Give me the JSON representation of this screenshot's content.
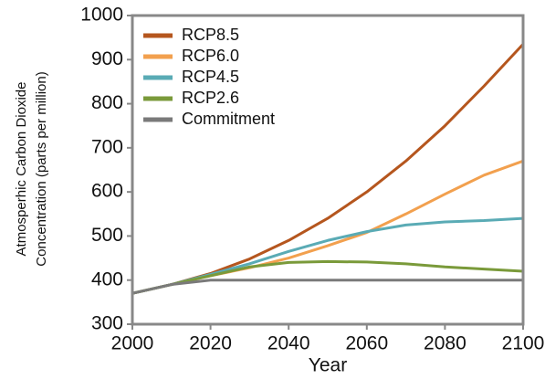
{
  "chart_data": {
    "type": "line",
    "xlabel": "Year",
    "ylabel": [
      "Atmosperhic Carbon Dioxide",
      "Concentration (parts per million)"
    ],
    "x": [
      2000,
      2010,
      2020,
      2030,
      2040,
      2050,
      2060,
      2070,
      2080,
      2090,
      2100
    ],
    "series": [
      {
        "name": "RCP8.5",
        "color": "#b5561e",
        "values": [
          370,
          390,
          415,
          448,
          490,
          540,
          600,
          670,
          750,
          840,
          935
        ]
      },
      {
        "name": "RCP6.0",
        "color": "#f2a04e",
        "values": [
          370,
          390,
          410,
          428,
          450,
          478,
          508,
          550,
          595,
          638,
          670
        ]
      },
      {
        "name": "RCP4.5",
        "color": "#5aabb5",
        "values": [
          370,
          390,
          413,
          437,
          465,
          490,
          510,
          525,
          532,
          535,
          540
        ]
      },
      {
        "name": "RCP2.6",
        "color": "#7a9a3a",
        "values": [
          370,
          390,
          410,
          430,
          440,
          442,
          441,
          437,
          430,
          425,
          420
        ]
      },
      {
        "name": "Commitment",
        "color": "#7a7a7a",
        "values": [
          370,
          390,
          400,
          400,
          400,
          400,
          400,
          400,
          400,
          400,
          400
        ]
      }
    ],
    "xlim": [
      2000,
      2100
    ],
    "xticks": [
      2000,
      2020,
      2040,
      2060,
      2080,
      2100
    ],
    "ylim": [
      300,
      1000
    ],
    "yticks": [
      300,
      400,
      500,
      600,
      700,
      800,
      900,
      1000
    ],
    "legend": "upper left",
    "grid": false
  }
}
